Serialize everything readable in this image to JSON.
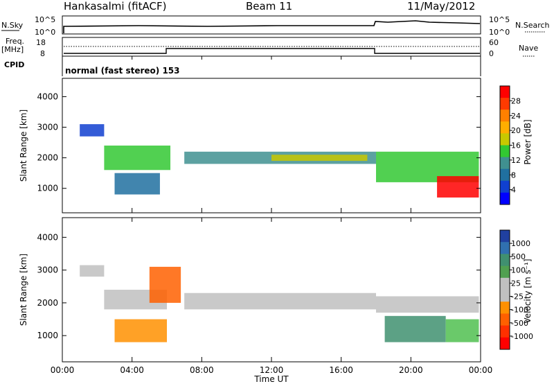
{
  "header": {
    "station": "Hankasalmi (fitACF)",
    "beam": "Beam 11",
    "date": "11/May/2012"
  },
  "top_panels": {
    "nsky_label": "N.Sky",
    "nsearch_label": "N.Search",
    "freq_label_1": "Freq.",
    "freq_label_2": "[MHz]",
    "nave_label": "Nave",
    "cpid_label": "CPID",
    "cpid_text": "normal (fast stereo) 153",
    "nsky_ticks": [
      "10^5",
      "10^0"
    ],
    "nsearch_ticks": [
      "10^5",
      "10^0"
    ],
    "freq_ticks": [
      "18",
      "8"
    ],
    "nave_ticks": [
      "60",
      "0"
    ]
  },
  "chart_data": [
    {
      "type": "heatmap",
      "name": "power",
      "ylabel": "Slant Range [km]",
      "ylim": [
        200,
        4600
      ],
      "yticks": [
        "4000",
        "3000",
        "2000",
        "1000"
      ],
      "x_ticks": [
        "00:00",
        "04:00",
        "08:00",
        "12:00",
        "16:00",
        "20:00",
        "00:00"
      ],
      "colorbar_label": "Power [dB]",
      "colorbar_ticks": [
        "28",
        "24",
        "20",
        "16",
        "12",
        "8",
        "4"
      ],
      "colorbar_colors": [
        "#ff0000",
        "#ff3a00",
        "#ff8000",
        "#ffae00",
        "#c8c800",
        "#32c832",
        "#409090",
        "#2070a0",
        "#1040d0",
        "#0000ff"
      ],
      "bands": [
        {
          "t0": 1.0,
          "t1": 2.4,
          "r0": 2700,
          "r1": 3100,
          "level": 1
        },
        {
          "t0": 2.4,
          "t1": 6.2,
          "r0": 1600,
          "r1": 2400,
          "level": 4
        },
        {
          "t0": 3.0,
          "t1": 5.6,
          "r0": 800,
          "r1": 1500,
          "level": 2
        },
        {
          "t0": 7.0,
          "t1": 18.0,
          "r0": 1800,
          "r1": 2200,
          "level": 3
        },
        {
          "t0": 12.0,
          "t1": 17.5,
          "r0": 1900,
          "r1": 2100,
          "level": 5
        },
        {
          "t0": 18.0,
          "t1": 23.9,
          "r0": 1200,
          "r1": 2200,
          "level": 4
        },
        {
          "t0": 21.5,
          "t1": 23.9,
          "r0": 700,
          "r1": 1400,
          "level": 9
        }
      ]
    },
    {
      "type": "heatmap",
      "name": "velocity",
      "ylabel": "Slant Range [km]",
      "ylim": [
        200,
        4600
      ],
      "yticks": [
        "4000",
        "3000",
        "2000",
        "1000"
      ],
      "x_ticks": [
        "00:00",
        "04:00",
        "08:00",
        "12:00",
        "16:00",
        "20:00",
        "00:00"
      ],
      "xlabel": "Time UT",
      "colorbar_label": "Velocity [m s⁻¹]",
      "colorbar_ticks": [
        "1000",
        "500",
        "100",
        "25",
        "-25",
        "-100",
        "-500",
        "-1000"
      ],
      "colorbar_colors": [
        "#2040a0",
        "#3070b0",
        "#409070",
        "#50a050",
        "#c0c0c0",
        "#c0c0c0",
        "#ff9000",
        "#ff6000",
        "#ff3000",
        "#ff0000"
      ],
      "bands": [
        {
          "t0": 1.0,
          "t1": 2.4,
          "r0": 2800,
          "r1": 3150,
          "color": "#c0c0c0"
        },
        {
          "t0": 2.4,
          "t1": 6.0,
          "r0": 1800,
          "r1": 2400,
          "color": "#c0c0c0"
        },
        {
          "t0": 5.0,
          "t1": 6.8,
          "r0": 2000,
          "r1": 3100,
          "color": "#ff6000"
        },
        {
          "t0": 3.0,
          "t1": 6.0,
          "r0": 800,
          "r1": 1500,
          "color": "#ff9000"
        },
        {
          "t0": 7.0,
          "t1": 18.0,
          "r0": 1800,
          "r1": 2300,
          "color": "#c0c0c0"
        },
        {
          "t0": 18.0,
          "t1": 23.9,
          "r0": 1700,
          "r1": 2200,
          "color": "#c0c0c0"
        },
        {
          "t0": 18.5,
          "t1": 22.0,
          "r0": 800,
          "r1": 1600,
          "color": "#409070"
        },
        {
          "t0": 22.0,
          "t1": 23.9,
          "r0": 800,
          "r1": 1500,
          "color": "#50c050"
        }
      ]
    }
  ]
}
